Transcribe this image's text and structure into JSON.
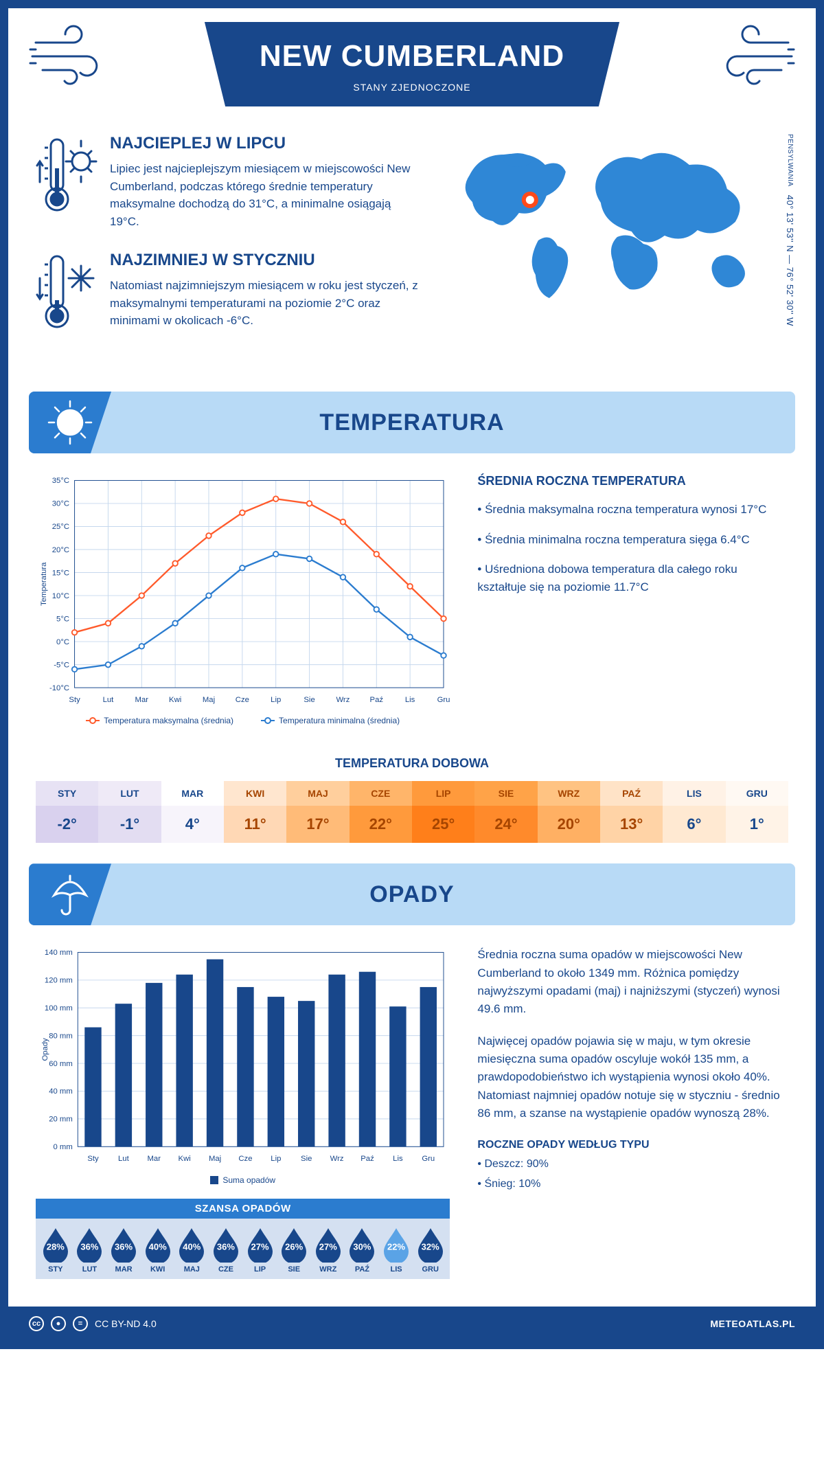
{
  "header": {
    "city": "NEW CUMBERLAND",
    "country": "STANY ZJEDNOCZONE"
  },
  "coords": {
    "state": "PENSYLWANIA",
    "text": "40° 13' 53'' N — 76° 52' 30'' W"
  },
  "facts": {
    "hot": {
      "title": "NAJCIEPLEJ W LIPCU",
      "text": "Lipiec jest najcieplejszym miesiącem w miejscowości New Cumberland, podczas którego średnie temperatury maksymalne dochodzą do 31°C, a minimalne osiągają 19°C."
    },
    "cold": {
      "title": "NAJZIMNIEJ W STYCZNIU",
      "text": "Natomiast najzimniejszym miesiącem w roku jest styczeń, z maksymalnymi temperaturami na poziomie 2°C oraz minimami w okolicach -6°C."
    }
  },
  "temperature": {
    "section_title": "TEMPERATURA",
    "right_heading": "ŚREDNIA ROCZNA TEMPERATURA",
    "bullets": [
      "• Średnia maksymalna roczna temperatura wynosi 17°C",
      "• Średnia minimalna roczna temperatura sięga 6.4°C",
      "• Uśredniona dobowa temperatura dla całego roku kształtuje się na poziomie 11.7°C"
    ],
    "chart": {
      "months": [
        "Sty",
        "Lut",
        "Mar",
        "Kwi",
        "Maj",
        "Cze",
        "Lip",
        "Sie",
        "Wrz",
        "Paź",
        "Lis",
        "Gru"
      ],
      "max_series": [
        2,
        4,
        10,
        17,
        23,
        28,
        31,
        30,
        26,
        19,
        12,
        5
      ],
      "min_series": [
        -6,
        -5,
        -1,
        4,
        10,
        16,
        19,
        18,
        14,
        7,
        1,
        -3
      ],
      "ymin": -10,
      "ymax": 35,
      "ystep": 5,
      "ylabel": "Temperatura",
      "max_color": "#ff5a2b",
      "min_color": "#2b7ccf",
      "grid_color": "#c5d7ed",
      "legend_max": "Temperatura maksymalna (średnia)",
      "legend_min": "Temperatura minimalna (średnia)"
    },
    "daily": {
      "title": "TEMPERATURA DOBOWA",
      "months": [
        "STY",
        "LUT",
        "MAR",
        "KWI",
        "MAJ",
        "CZE",
        "LIP",
        "SIE",
        "WRZ",
        "PAŹ",
        "LIS",
        "GRU"
      ],
      "values": [
        "-2°",
        "-1°",
        "4°",
        "11°",
        "17°",
        "22°",
        "25°",
        "24°",
        "20°",
        "13°",
        "6°",
        "1°"
      ],
      "head_colors": [
        "#e7e2f4",
        "#efeaf7",
        "#ffffff",
        "#ffe6cf",
        "#ffcf9d",
        "#ffb56a",
        "#ff9a3c",
        "#ffa348",
        "#ffc382",
        "#ffe3c7",
        "#fff2e6",
        "#fff9f3"
      ],
      "val_colors": [
        "#d9d1ee",
        "#e3ddf2",
        "#f7f4fb",
        "#ffd8b5",
        "#ffbb78",
        "#ff9a3c",
        "#ff7f1a",
        "#ff8a2b",
        "#ffb063",
        "#ffd3a6",
        "#ffe9d2",
        "#fff3e7"
      ],
      "text_color": "#18478b",
      "hot_text_color": "#a64500"
    }
  },
  "precipitation": {
    "section_title": "OPADY",
    "para1": "Średnia roczna suma opadów w miejscowości New Cumberland to około 1349 mm. Różnica pomiędzy najwyższymi opadami (maj) i najniższymi (styczeń) wynosi 49.6 mm.",
    "para2": "Najwięcej opadów pojawia się w maju, w tym okresie miesięczna suma opadów oscyluje wokół 135 mm, a prawdopodobieństwo ich wystąpienia wynosi około 40%. Natomiast najmniej opadów notuje się w styczniu - średnio 86 mm, a szanse na wystąpienie opadów wynoszą 28%.",
    "chart": {
      "months": [
        "Sty",
        "Lut",
        "Mar",
        "Kwi",
        "Maj",
        "Cze",
        "Lip",
        "Sie",
        "Wrz",
        "Paź",
        "Lis",
        "Gru"
      ],
      "values": [
        86,
        103,
        118,
        124,
        135,
        115,
        108,
        105,
        124,
        126,
        101,
        115
      ],
      "ymin": 0,
      "ymax": 140,
      "ystep": 20,
      "ylabel": "Opady",
      "bar_color": "#18478b",
      "grid_color": "#c5d7ed",
      "legend": "Suma opadów"
    },
    "chance": {
      "title": "SZANSA OPADÓW",
      "months": [
        "STY",
        "LUT",
        "MAR",
        "KWI",
        "MAJ",
        "CZE",
        "LIP",
        "SIE",
        "WRZ",
        "PAŹ",
        "LIS",
        "GRU"
      ],
      "values": [
        "28%",
        "36%",
        "36%",
        "40%",
        "40%",
        "36%",
        "27%",
        "26%",
        "27%",
        "30%",
        "22%",
        "32%"
      ],
      "drop_dark": "#18478b",
      "drop_light": "#5aa3e6",
      "light_index": 10
    },
    "types": {
      "title": "ROCZNE OPADY WEDŁUG TYPU",
      "rain": "• Deszcz: 90%",
      "snow": "• Śnieg: 10%"
    }
  },
  "footer": {
    "license": "CC BY-ND 4.0",
    "site": "METEOATLAS.PL"
  }
}
